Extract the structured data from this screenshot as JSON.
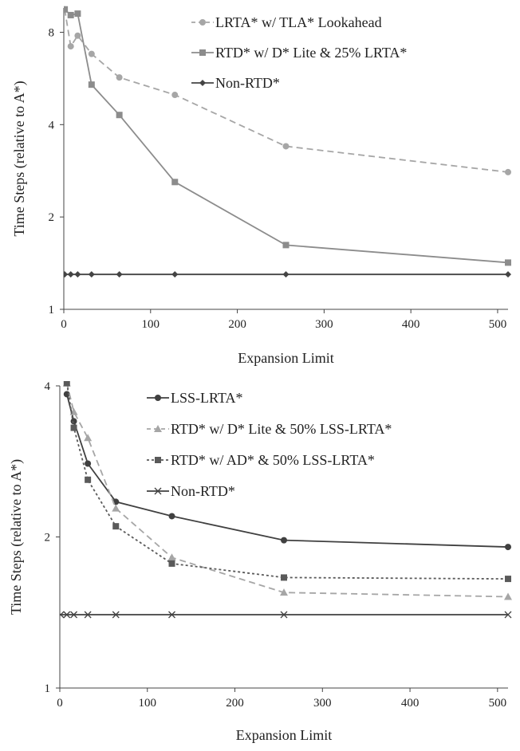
{
  "chart_data": [
    {
      "type": "line",
      "title": "",
      "xlabel": "Expansion Limit",
      "ylabel": "Time Steps (relative to A*)",
      "xlim": [
        0,
        512
      ],
      "ylim": [
        1,
        9.6
      ],
      "yscale": "log2",
      "xticks": [
        0,
        100,
        200,
        300,
        400,
        500
      ],
      "yticks": [
        1,
        2,
        4,
        8
      ],
      "grid": false,
      "legend": "top-right",
      "series": [
        {
          "name": "LRTA* w/ TLA* Lookahead",
          "color": "#a6a6a6",
          "dash": "dashed",
          "marker": "circle",
          "points": [
            [
              1,
              9.5
            ],
            [
              8,
              7.2
            ],
            [
              16,
              7.8
            ],
            [
              32,
              6.8
            ],
            [
              64,
              5.7
            ],
            [
              128,
              5.0
            ],
            [
              256,
              3.4
            ],
            [
              512,
              2.8
            ]
          ]
        },
        {
          "name": "RTD* w/ D* Lite & 25% LRTA*",
          "color": "#8c8c8c",
          "dash": "solid",
          "marker": "square",
          "points": [
            [
              1,
              9.5
            ],
            [
              8,
              9.1
            ],
            [
              16,
              9.2
            ],
            [
              32,
              5.4
            ],
            [
              64,
              4.3
            ],
            [
              128,
              2.6
            ],
            [
              256,
              1.62
            ],
            [
              512,
              1.42
            ]
          ]
        },
        {
          "name": "Non-RTD*",
          "color": "#444444",
          "dash": "solid",
          "marker": "diamond",
          "points": [
            [
              1,
              1.3
            ],
            [
              8,
              1.3
            ],
            [
              16,
              1.3
            ],
            [
              32,
              1.3
            ],
            [
              64,
              1.3
            ],
            [
              128,
              1.3
            ],
            [
              256,
              1.3
            ],
            [
              512,
              1.3
            ]
          ]
        }
      ]
    },
    {
      "type": "line",
      "title": "",
      "xlabel": "Expansion Limit",
      "ylabel": "Time Steps (relative to A*)",
      "xlim": [
        0,
        512
      ],
      "ylim": [
        1,
        4
      ],
      "yscale": "log2",
      "xticks": [
        0,
        100,
        200,
        300,
        400,
        500
      ],
      "yticks": [
        1,
        2,
        4
      ],
      "grid": false,
      "legend": "top-right",
      "series": [
        {
          "name": "LSS-LRTA*",
          "color": "#404040",
          "dash": "solid",
          "marker": "circle",
          "points": [
            [
              8,
              3.85
            ],
            [
              16,
              3.4
            ],
            [
              32,
              2.8
            ],
            [
              64,
              2.35
            ],
            [
              128,
              2.2
            ],
            [
              256,
              1.97
            ],
            [
              512,
              1.91
            ]
          ]
        },
        {
          "name": "RTD* w/ D* Lite & 50% LSS-LRTA*",
          "color": "#a6a6a6",
          "dash": "dashed",
          "marker": "triangle",
          "points": [
            [
              8,
              4.05
            ],
            [
              16,
              3.55
            ],
            [
              32,
              3.15
            ],
            [
              64,
              2.28
            ],
            [
              128,
              1.82
            ],
            [
              256,
              1.55
            ],
            [
              512,
              1.52
            ]
          ]
        },
        {
          "name": "RTD* w/ AD* & 50% LSS-LRTA*",
          "color": "#5a5a5a",
          "dash": "dotted",
          "marker": "square",
          "points": [
            [
              8,
              4.05
            ],
            [
              16,
              3.3
            ],
            [
              32,
              2.6
            ],
            [
              64,
              2.1
            ],
            [
              128,
              1.77
            ],
            [
              256,
              1.66
            ],
            [
              512,
              1.65
            ]
          ]
        },
        {
          "name": "Non-RTD*",
          "color": "#404040",
          "dash": "solid",
          "marker": "cross",
          "points": [
            [
              1,
              1.4
            ],
            [
              8,
              1.4
            ],
            [
              16,
              1.4
            ],
            [
              32,
              1.4
            ],
            [
              64,
              1.4
            ],
            [
              128,
              1.4
            ],
            [
              256,
              1.4
            ],
            [
              512,
              1.4
            ]
          ]
        }
      ]
    }
  ]
}
